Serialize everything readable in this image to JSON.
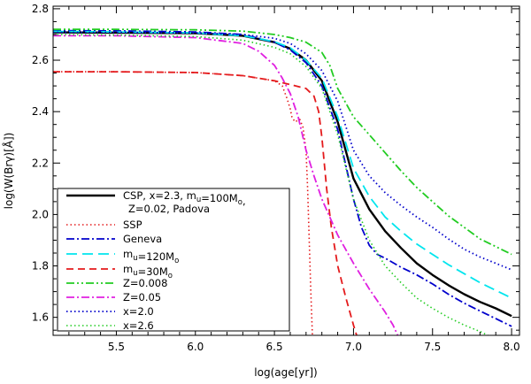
{
  "chart_data": {
    "type": "line",
    "title": "",
    "xlabel": "log(age[yr])",
    "ylabel": "log(W(Brγ)[Å])",
    "xlim": [
      5.1,
      8.05
    ],
    "ylim": [
      1.53,
      2.81
    ],
    "x_ticks": [
      5.5,
      6.0,
      6.5,
      7.0,
      7.5,
      8.0
    ],
    "x_tick_labels": [
      "5.5",
      "6.0",
      "6.5",
      "7.0",
      "7.5",
      "8.0"
    ],
    "y_ticks": [
      1.6,
      1.8,
      2.0,
      2.2,
      2.4,
      2.6,
      2.8
    ],
    "y_tick_labels": [
      "1.6",
      "1.8",
      "2.0",
      "2.2",
      "2.4",
      "2.6",
      "2.8"
    ],
    "legend_position": "bottom-left",
    "series": [
      {
        "name": "CSP, x=2.3, m_u=100M_o, Z=0.02, Padova",
        "legend_lines": [
          "CSP, x=2.3, m",
          "u",
          "=100M",
          "o",
          ",",
          "Z=0.02, Padova"
        ],
        "color": "#000000",
        "dash": "solid",
        "width": 2.4,
        "points": [
          [
            5.1,
            2.708
          ],
          [
            5.5,
            2.707
          ],
          [
            6.0,
            2.705
          ],
          [
            6.3,
            2.695
          ],
          [
            6.5,
            2.67
          ],
          [
            6.6,
            2.645
          ],
          [
            6.7,
            2.6
          ],
          [
            6.8,
            2.52
          ],
          [
            6.9,
            2.36
          ],
          [
            7.0,
            2.14
          ],
          [
            7.1,
            2.02
          ],
          [
            7.2,
            1.935
          ],
          [
            7.3,
            1.87
          ],
          [
            7.4,
            1.81
          ],
          [
            7.5,
            1.765
          ],
          [
            7.6,
            1.725
          ],
          [
            7.7,
            1.69
          ],
          [
            7.8,
            1.66
          ],
          [
            7.9,
            1.635
          ],
          [
            8.0,
            1.605
          ]
        ]
      },
      {
        "name": "SSP",
        "legend_lines": [
          "SSP"
        ],
        "color": "#e41a1c",
        "dash": "dot",
        "width": 1.6,
        "points": [
          [
            5.1,
            2.555
          ],
          [
            5.5,
            2.555
          ],
          [
            6.0,
            2.552
          ],
          [
            6.3,
            2.54
          ],
          [
            6.5,
            2.52
          ],
          [
            6.55,
            2.5
          ],
          [
            6.58,
            2.45
          ],
          [
            6.6,
            2.41
          ],
          [
            6.61,
            2.38
          ],
          [
            6.63,
            2.36
          ],
          [
            6.66,
            2.37
          ],
          [
            6.68,
            2.34
          ],
          [
            6.7,
            2.25
          ],
          [
            6.71,
            2.1
          ],
          [
            6.72,
            1.9
          ],
          [
            6.73,
            1.7
          ],
          [
            6.74,
            1.53
          ]
        ]
      },
      {
        "name": "Geneva",
        "legend_lines": [
          "Geneva"
        ],
        "color": "#0000cc",
        "dash": "dashdot",
        "width": 1.8,
        "points": [
          [
            5.1,
            2.715
          ],
          [
            5.5,
            2.714
          ],
          [
            6.0,
            2.71
          ],
          [
            6.3,
            2.7
          ],
          [
            6.5,
            2.67
          ],
          [
            6.6,
            2.64
          ],
          [
            6.7,
            2.59
          ],
          [
            6.8,
            2.5
          ],
          [
            6.9,
            2.33
          ],
          [
            7.0,
            2.06
          ],
          [
            7.05,
            1.95
          ],
          [
            7.1,
            1.88
          ],
          [
            7.15,
            1.845
          ],
          [
            7.2,
            1.83
          ],
          [
            7.3,
            1.795
          ],
          [
            7.4,
            1.765
          ],
          [
            7.5,
            1.73
          ],
          [
            7.6,
            1.69
          ],
          [
            7.7,
            1.655
          ],
          [
            7.8,
            1.625
          ],
          [
            7.9,
            1.595
          ],
          [
            8.0,
            1.565
          ]
        ]
      },
      {
        "name": "m_u=120M_o",
        "legend_lines": [
          "m",
          "u",
          "=120M",
          "o"
        ],
        "color": "#00e5ee",
        "dash": "longdash",
        "width": 1.8,
        "points": [
          [
            5.1,
            2.712
          ],
          [
            5.5,
            2.71
          ],
          [
            6.0,
            2.706
          ],
          [
            6.3,
            2.695
          ],
          [
            6.5,
            2.672
          ],
          [
            6.6,
            2.648
          ],
          [
            6.7,
            2.6
          ],
          [
            6.8,
            2.53
          ],
          [
            6.9,
            2.38
          ],
          [
            7.0,
            2.18
          ],
          [
            7.1,
            2.07
          ],
          [
            7.2,
            1.99
          ],
          [
            7.3,
            1.935
          ],
          [
            7.4,
            1.885
          ],
          [
            7.5,
            1.845
          ],
          [
            7.6,
            1.805
          ],
          [
            7.7,
            1.77
          ],
          [
            7.8,
            1.735
          ],
          [
            7.9,
            1.705
          ],
          [
            8.0,
            1.675
          ]
        ]
      },
      {
        "name": "m_u=30M_o",
        "legend_lines": [
          "m",
          "u",
          "=30M",
          "o"
        ],
        "color": "#e41a1c",
        "dash": "dash",
        "width": 1.8,
        "points": [
          [
            5.1,
            2.555
          ],
          [
            5.5,
            2.555
          ],
          [
            6.0,
            2.552
          ],
          [
            6.3,
            2.54
          ],
          [
            6.5,
            2.52
          ],
          [
            6.6,
            2.505
          ],
          [
            6.7,
            2.49
          ],
          [
            6.75,
            2.46
          ],
          [
            6.78,
            2.4
          ],
          [
            6.8,
            2.3
          ],
          [
            6.83,
            2.1
          ],
          [
            6.86,
            1.95
          ],
          [
            6.9,
            1.8
          ],
          [
            6.95,
            1.68
          ],
          [
            7.0,
            1.57
          ],
          [
            7.02,
            1.53
          ]
        ]
      },
      {
        "name": "Z=0.008",
        "legend_lines": [
          "Z=0.008"
        ],
        "color": "#22cc22",
        "dash": "dashdotdot",
        "width": 1.8,
        "points": [
          [
            5.1,
            2.72
          ],
          [
            5.5,
            2.72
          ],
          [
            6.0,
            2.718
          ],
          [
            6.3,
            2.713
          ],
          [
            6.5,
            2.7
          ],
          [
            6.6,
            2.688
          ],
          [
            6.7,
            2.67
          ],
          [
            6.8,
            2.63
          ],
          [
            6.85,
            2.58
          ],
          [
            6.9,
            2.49
          ],
          [
            7.0,
            2.38
          ],
          [
            7.1,
            2.31
          ],
          [
            7.2,
            2.24
          ],
          [
            7.3,
            2.17
          ],
          [
            7.4,
            2.105
          ],
          [
            7.5,
            2.05
          ],
          [
            7.6,
            1.995
          ],
          [
            7.7,
            1.95
          ],
          [
            7.8,
            1.905
          ],
          [
            7.9,
            1.875
          ],
          [
            8.0,
            1.845
          ]
        ]
      },
      {
        "name": "Z=0.05",
        "legend_lines": [
          "Z=0.05"
        ],
        "color": "#e020e0",
        "dash": "dashdot",
        "width": 1.8,
        "points": [
          [
            5.1,
            2.695
          ],
          [
            5.5,
            2.695
          ],
          [
            6.0,
            2.688
          ],
          [
            6.3,
            2.665
          ],
          [
            6.4,
            2.635
          ],
          [
            6.5,
            2.58
          ],
          [
            6.55,
            2.53
          ],
          [
            6.6,
            2.47
          ],
          [
            6.65,
            2.38
          ],
          [
            6.7,
            2.25
          ],
          [
            6.75,
            2.15
          ],
          [
            6.8,
            2.06
          ],
          [
            6.9,
            1.92
          ],
          [
            7.0,
            1.81
          ],
          [
            7.1,
            1.71
          ],
          [
            7.2,
            1.62
          ],
          [
            7.25,
            1.57
          ],
          [
            7.28,
            1.53
          ]
        ]
      },
      {
        "name": "x=2.0",
        "legend_lines": [
          "x=2.0"
        ],
        "color": "#0000cc",
        "dash": "dot",
        "width": 1.8,
        "points": [
          [
            5.1,
            2.708
          ],
          [
            5.5,
            2.708
          ],
          [
            6.0,
            2.706
          ],
          [
            6.3,
            2.7
          ],
          [
            6.5,
            2.685
          ],
          [
            6.6,
            2.665
          ],
          [
            6.7,
            2.625
          ],
          [
            6.8,
            2.56
          ],
          [
            6.9,
            2.44
          ],
          [
            7.0,
            2.25
          ],
          [
            7.1,
            2.15
          ],
          [
            7.2,
            2.085
          ],
          [
            7.3,
            2.035
          ],
          [
            7.4,
            1.99
          ],
          [
            7.5,
            1.95
          ],
          [
            7.6,
            1.905
          ],
          [
            7.7,
            1.865
          ],
          [
            7.8,
            1.835
          ],
          [
            7.9,
            1.81
          ],
          [
            8.0,
            1.785
          ]
        ]
      },
      {
        "name": "x=2.6",
        "legend_lines": [
          "x=2.6"
        ],
        "color": "#22cc22",
        "dash": "dot",
        "width": 1.6,
        "points": [
          [
            5.1,
            2.7
          ],
          [
            5.5,
            2.698
          ],
          [
            6.0,
            2.692
          ],
          [
            6.3,
            2.678
          ],
          [
            6.5,
            2.65
          ],
          [
            6.6,
            2.625
          ],
          [
            6.7,
            2.575
          ],
          [
            6.8,
            2.49
          ],
          [
            6.9,
            2.31
          ],
          [
            7.0,
            2.06
          ],
          [
            7.1,
            1.9
          ],
          [
            7.2,
            1.8
          ],
          [
            7.3,
            1.735
          ],
          [
            7.4,
            1.675
          ],
          [
            7.5,
            1.635
          ],
          [
            7.6,
            1.6
          ],
          [
            7.7,
            1.57
          ],
          [
            7.8,
            1.545
          ],
          [
            7.85,
            1.53
          ]
        ]
      }
    ]
  }
}
